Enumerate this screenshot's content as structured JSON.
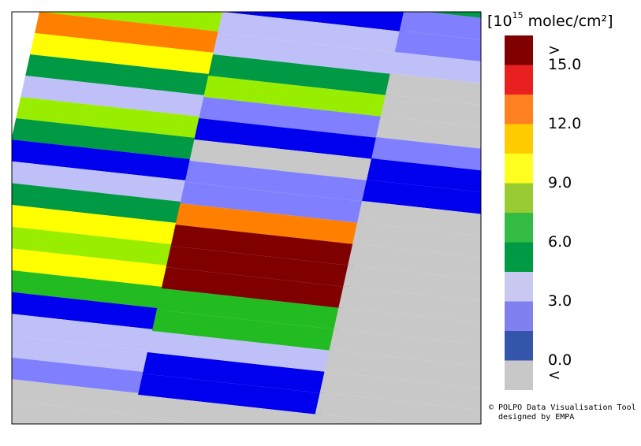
{
  "legend": {
    "unit_prefix": "[10",
    "unit_exponent": "15",
    "unit_suffix": " molec/cm²]",
    "colors": [
      "#800000",
      "#e82020",
      "#ff8020",
      "#ffcc00",
      "#ffff20",
      "#99cc33",
      "#33bb44",
      "#009944",
      "#c8c8f0",
      "#8080ee",
      "#3355aa",
      "#c8c8c8"
    ],
    "labels": [
      ">",
      "15.0",
      "12.0",
      "9.0",
      "6.0",
      "3.0",
      "0.0",
      "<"
    ]
  },
  "credit": {
    "line1": "© POLPO Data Visualisation Tool",
    "line2": "designed by EMPA"
  }
}
